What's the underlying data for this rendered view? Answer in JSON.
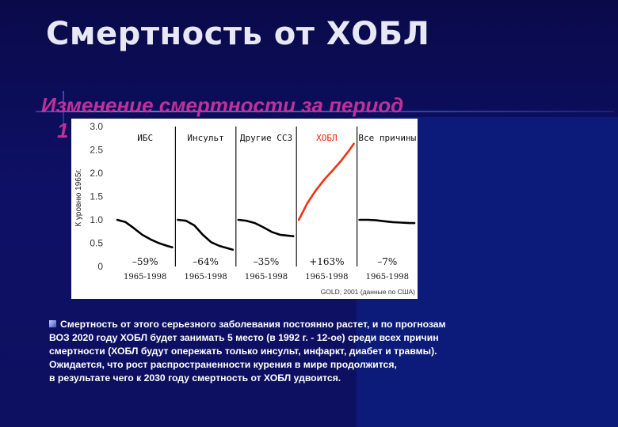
{
  "slide": {
    "title": "Смертность от ХОБЛ",
    "subtitle": "Изменение смертности за период",
    "subtitle_overflow": "1",
    "caption_lines": [
      "Смертность от этого серьезного заболевания постоянно растет, и по прогнозам",
      "ВОЗ 2020 году ХОБЛ будет занимать 5 место (в 1992 г. - 12-ое) среди всех причин",
      "смертности (ХОБЛ будут опережать только инсульт, инфаркт, диабет и травмы).",
      "Ожидается, что рост распространенности курения в мире продолжится,",
      "в результате чего к 2030 году смертность от ХОБЛ удвоится."
    ],
    "bullet_icon": "square-bullet-icon"
  },
  "chart_data": {
    "type": "line",
    "ylabel": "К уровню 1965г.",
    "ylim": [
      0,
      3.0
    ],
    "yticks": [
      "3.0",
      "2.5",
      "2.0",
      "1.5",
      "1.0",
      "0.5",
      "0"
    ],
    "source": "GOLD, 2001 (данные по США)",
    "x_range": [
      1965,
      1998
    ],
    "panels": [
      {
        "name": "ИБС",
        "period": "1965-1998",
        "change": "–59%",
        "color": "#000000",
        "x": [
          1965,
          1970,
          1975,
          1980,
          1985,
          1990,
          1995,
          1998
        ],
        "values": [
          1.0,
          0.95,
          0.82,
          0.68,
          0.58,
          0.5,
          0.44,
          0.41
        ]
      },
      {
        "name": "Инсульт",
        "period": "1965-1998",
        "change": "–64%",
        "color": "#000000",
        "x": [
          1965,
          1970,
          1975,
          1980,
          1985,
          1990,
          1995,
          1998
        ],
        "values": [
          1.0,
          0.98,
          0.88,
          0.68,
          0.52,
          0.44,
          0.39,
          0.36
        ]
      },
      {
        "name": "Другие ССЗ",
        "period": "1965-1998",
        "change": "–35%",
        "color": "#000000",
        "x": [
          1965,
          1970,
          1975,
          1980,
          1985,
          1990,
          1995,
          1998
        ],
        "values": [
          1.0,
          0.98,
          0.93,
          0.84,
          0.74,
          0.68,
          0.66,
          0.65
        ]
      },
      {
        "name": "ХОБЛ",
        "period": "1965-1998",
        "change": "+163%",
        "color": "#ee3311",
        "x": [
          1965,
          1970,
          1975,
          1980,
          1985,
          1990,
          1995,
          1998
        ],
        "values": [
          1.0,
          1.35,
          1.62,
          1.85,
          2.05,
          2.25,
          2.48,
          2.63
        ]
      },
      {
        "name": "Все причины",
        "period": "1965-1998",
        "change": "–7%",
        "color": "#000000",
        "x": [
          1965,
          1970,
          1975,
          1980,
          1985,
          1990,
          1995,
          1998
        ],
        "values": [
          1.0,
          1.0,
          0.99,
          0.97,
          0.95,
          0.94,
          0.93,
          0.93
        ]
      }
    ]
  }
}
